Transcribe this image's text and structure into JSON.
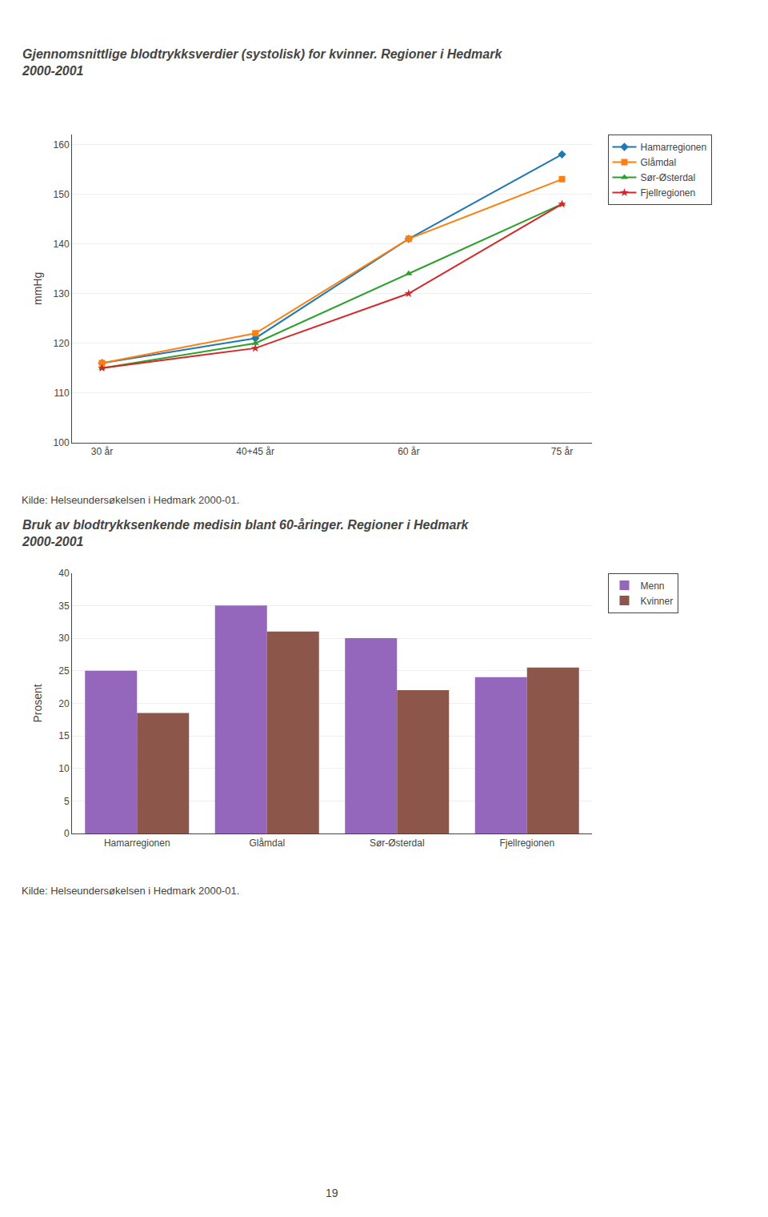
{
  "chart_data": [
    {
      "type": "line",
      "title": "Gjennomsnittlige blodtrykksverdier (systolisk) for kvinner. Regioner i Hedmark\n2000-2001",
      "categories": [
        "30 år",
        "40+45 år",
        "60 år",
        "75 år"
      ],
      "series": [
        {
          "name": "Hamarregionen",
          "values": [
            116,
            121,
            141,
            158
          ],
          "marker": "diamond"
        },
        {
          "name": "Glåmdal",
          "values": [
            116,
            122,
            141,
            153
          ],
          "marker": "square"
        },
        {
          "name": "Sør-Østerdal",
          "values": [
            115,
            120,
            134,
            148
          ],
          "marker": "triangle-up"
        },
        {
          "name": "Fjellregionen",
          "values": [
            115,
            119,
            130,
            148
          ],
          "marker": "star"
        }
      ],
      "y_label": "mmHg",
      "ylim": [
        100,
        162
      ],
      "yticks": [
        100,
        110,
        120,
        130,
        140,
        150,
        160
      ],
      "grid": true,
      "legend": "right",
      "annotations": [
        "Kilde: Helseundersøkelsen i Hedmark 2000-01."
      ]
    },
    {
      "type": "bar",
      "title": "Bruk av blodtrykksenkende medisin blant 60-åringer. Regioner i Hedmark\n2000-2001",
      "categories": [
        "Hamarregionen",
        "Glåmdal",
        "Sør-Østerdal",
        "Fjellregionen"
      ],
      "series": [
        {
          "name": "Menn",
          "values": [
            25,
            35,
            30,
            24
          ]
        },
        {
          "name": "Kvinner",
          "values": [
            18.5,
            31,
            22,
            25.5
          ]
        }
      ],
      "y_label": "Prosent",
      "ylim": [
        0,
        40
      ],
      "yticks": [
        0,
        5,
        10,
        15,
        20,
        25,
        30,
        35,
        40
      ],
      "grid": true,
      "legend": "right",
      "annotations": [
        "Kilde: Helseundersøkelsen i Hedmark 2000-01."
      ]
    }
  ],
  "annotations": [
    "19"
  ]
}
